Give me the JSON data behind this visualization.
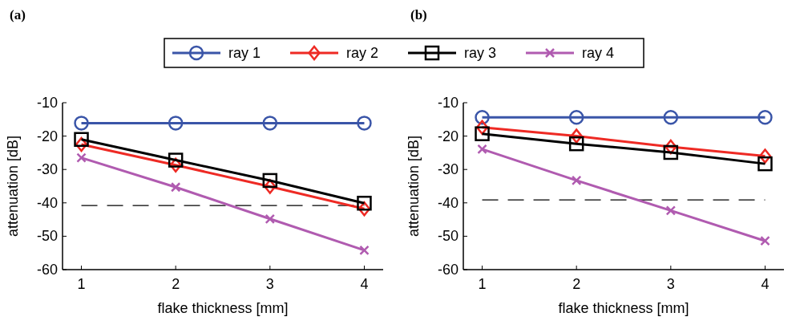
{
  "chart_data": [
    {
      "type": "line",
      "title": "(a)",
      "xlabel": "flake thickness [mm]",
      "ylabel": "attenuation [dB]",
      "x": [
        1,
        2,
        3,
        4
      ],
      "xlim": [
        0.8,
        4.2
      ],
      "xticks": [
        1,
        2,
        3,
        4
      ],
      "ylim": [
        -60,
        -10
      ],
      "yticks": [
        -60,
        -50,
        -40,
        -30,
        -20,
        -10
      ],
      "legend": "top",
      "grid": false,
      "series": [
        {
          "name": "ray 1",
          "color": "#3a55a8",
          "marker": "circle",
          "values": [
            -16.1,
            -16.1,
            -16.1,
            -16.1
          ]
        },
        {
          "name": "ray 2",
          "color": "#ee2a24",
          "marker": "diamond",
          "values": [
            -22.5,
            -28.7,
            -35.1,
            -41.8
          ]
        },
        {
          "name": "ray 3",
          "color": "#000000",
          "marker": "square",
          "values": [
            -21.0,
            -27.2,
            -33.3,
            -40.1
          ]
        },
        {
          "name": "ray 4",
          "color": "#b05bb0",
          "marker": "cross",
          "values": [
            -26.5,
            -35.3,
            -44.8,
            -54.2
          ]
        }
      ],
      "ref_lines": [
        {
          "axis": "y",
          "value": -40.8,
          "color": "#000000",
          "line_style": "dashed"
        }
      ]
    },
    {
      "type": "line",
      "title": "(b)",
      "xlabel": "flake thickness [mm]",
      "ylabel": "attenuation [dB]",
      "x": [
        1,
        2,
        3,
        4
      ],
      "xlim": [
        0.8,
        4.2
      ],
      "xticks": [
        1,
        2,
        3,
        4
      ],
      "ylim": [
        -60,
        -10
      ],
      "yticks": [
        -60,
        -50,
        -40,
        -30,
        -20,
        -10
      ],
      "grid": false,
      "series": [
        {
          "color": "#3a55a8",
          "marker": "circle",
          "values": [
            -14.4,
            -14.4,
            -14.4,
            -14.4
          ]
        },
        {
          "color": "#ee2a24",
          "marker": "diamond",
          "values": [
            -17.4,
            -20.0,
            -23.2,
            -26.0
          ]
        },
        {
          "color": "#000000",
          "marker": "square",
          "values": [
            -19.3,
            -22.3,
            -24.9,
            -28.3
          ]
        },
        {
          "color": "#b05bb0",
          "marker": "cross",
          "values": [
            -23.9,
            -33.3,
            -42.3,
            -51.4
          ]
        }
      ],
      "ref_lines": [
        {
          "axis": "y",
          "value": -39.1,
          "color": "#000000",
          "line_style": "dashed"
        }
      ]
    }
  ]
}
